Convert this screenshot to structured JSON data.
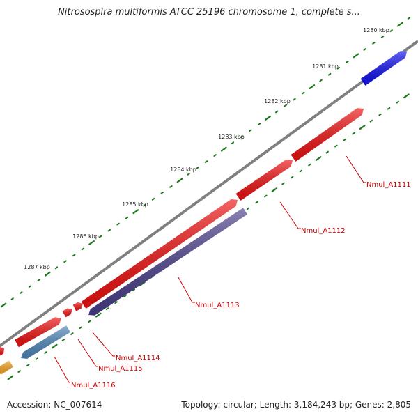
{
  "title": "Nitrosospira multiformis ATCC 25196 chromosome 1, complete s...",
  "footer": {
    "accession": "Accession: NC_007614",
    "summary": "Topology: circular; Length: 3,184,243 bp; Genes: 2,805"
  },
  "scale_ticks": [
    {
      "label": "1280 kbp"
    },
    {
      "label": "1281 kbp"
    },
    {
      "label": "1282 kbp"
    },
    {
      "label": "1283 kbp"
    },
    {
      "label": "1284 kbp"
    },
    {
      "label": "1285 kbp"
    },
    {
      "label": "1286 kbp"
    },
    {
      "label": "1287 kbp"
    }
  ],
  "genes": [
    {
      "label": "Nmul_A1111",
      "color": "#ee1111",
      "strand": "forward"
    },
    {
      "label": "Nmul_A1112",
      "color": "#ee1111",
      "strand": "forward"
    },
    {
      "label": "Nmul_A1113",
      "color": "#4a3f8a",
      "strand": "reverse"
    },
    {
      "label": "Nmul_A1114",
      "color": "#ee1111",
      "strand": "forward"
    },
    {
      "label": "Nmul_A1115",
      "color": "#ee1111",
      "strand": "forward"
    },
    {
      "label": "Nmul_A1116",
      "color": "#4f86b8",
      "strand": "reverse"
    }
  ],
  "unlabeled_features": [
    {
      "name": "blue-gene",
      "color": "#1010ee"
    },
    {
      "name": "orange-gene",
      "color": "#f5a623"
    },
    {
      "name": "red-gene-left",
      "color": "#ee1111"
    }
  ],
  "colors": {
    "backbone": "#808080",
    "tick": "#1a7a1a",
    "label_text": "#cc0000"
  }
}
